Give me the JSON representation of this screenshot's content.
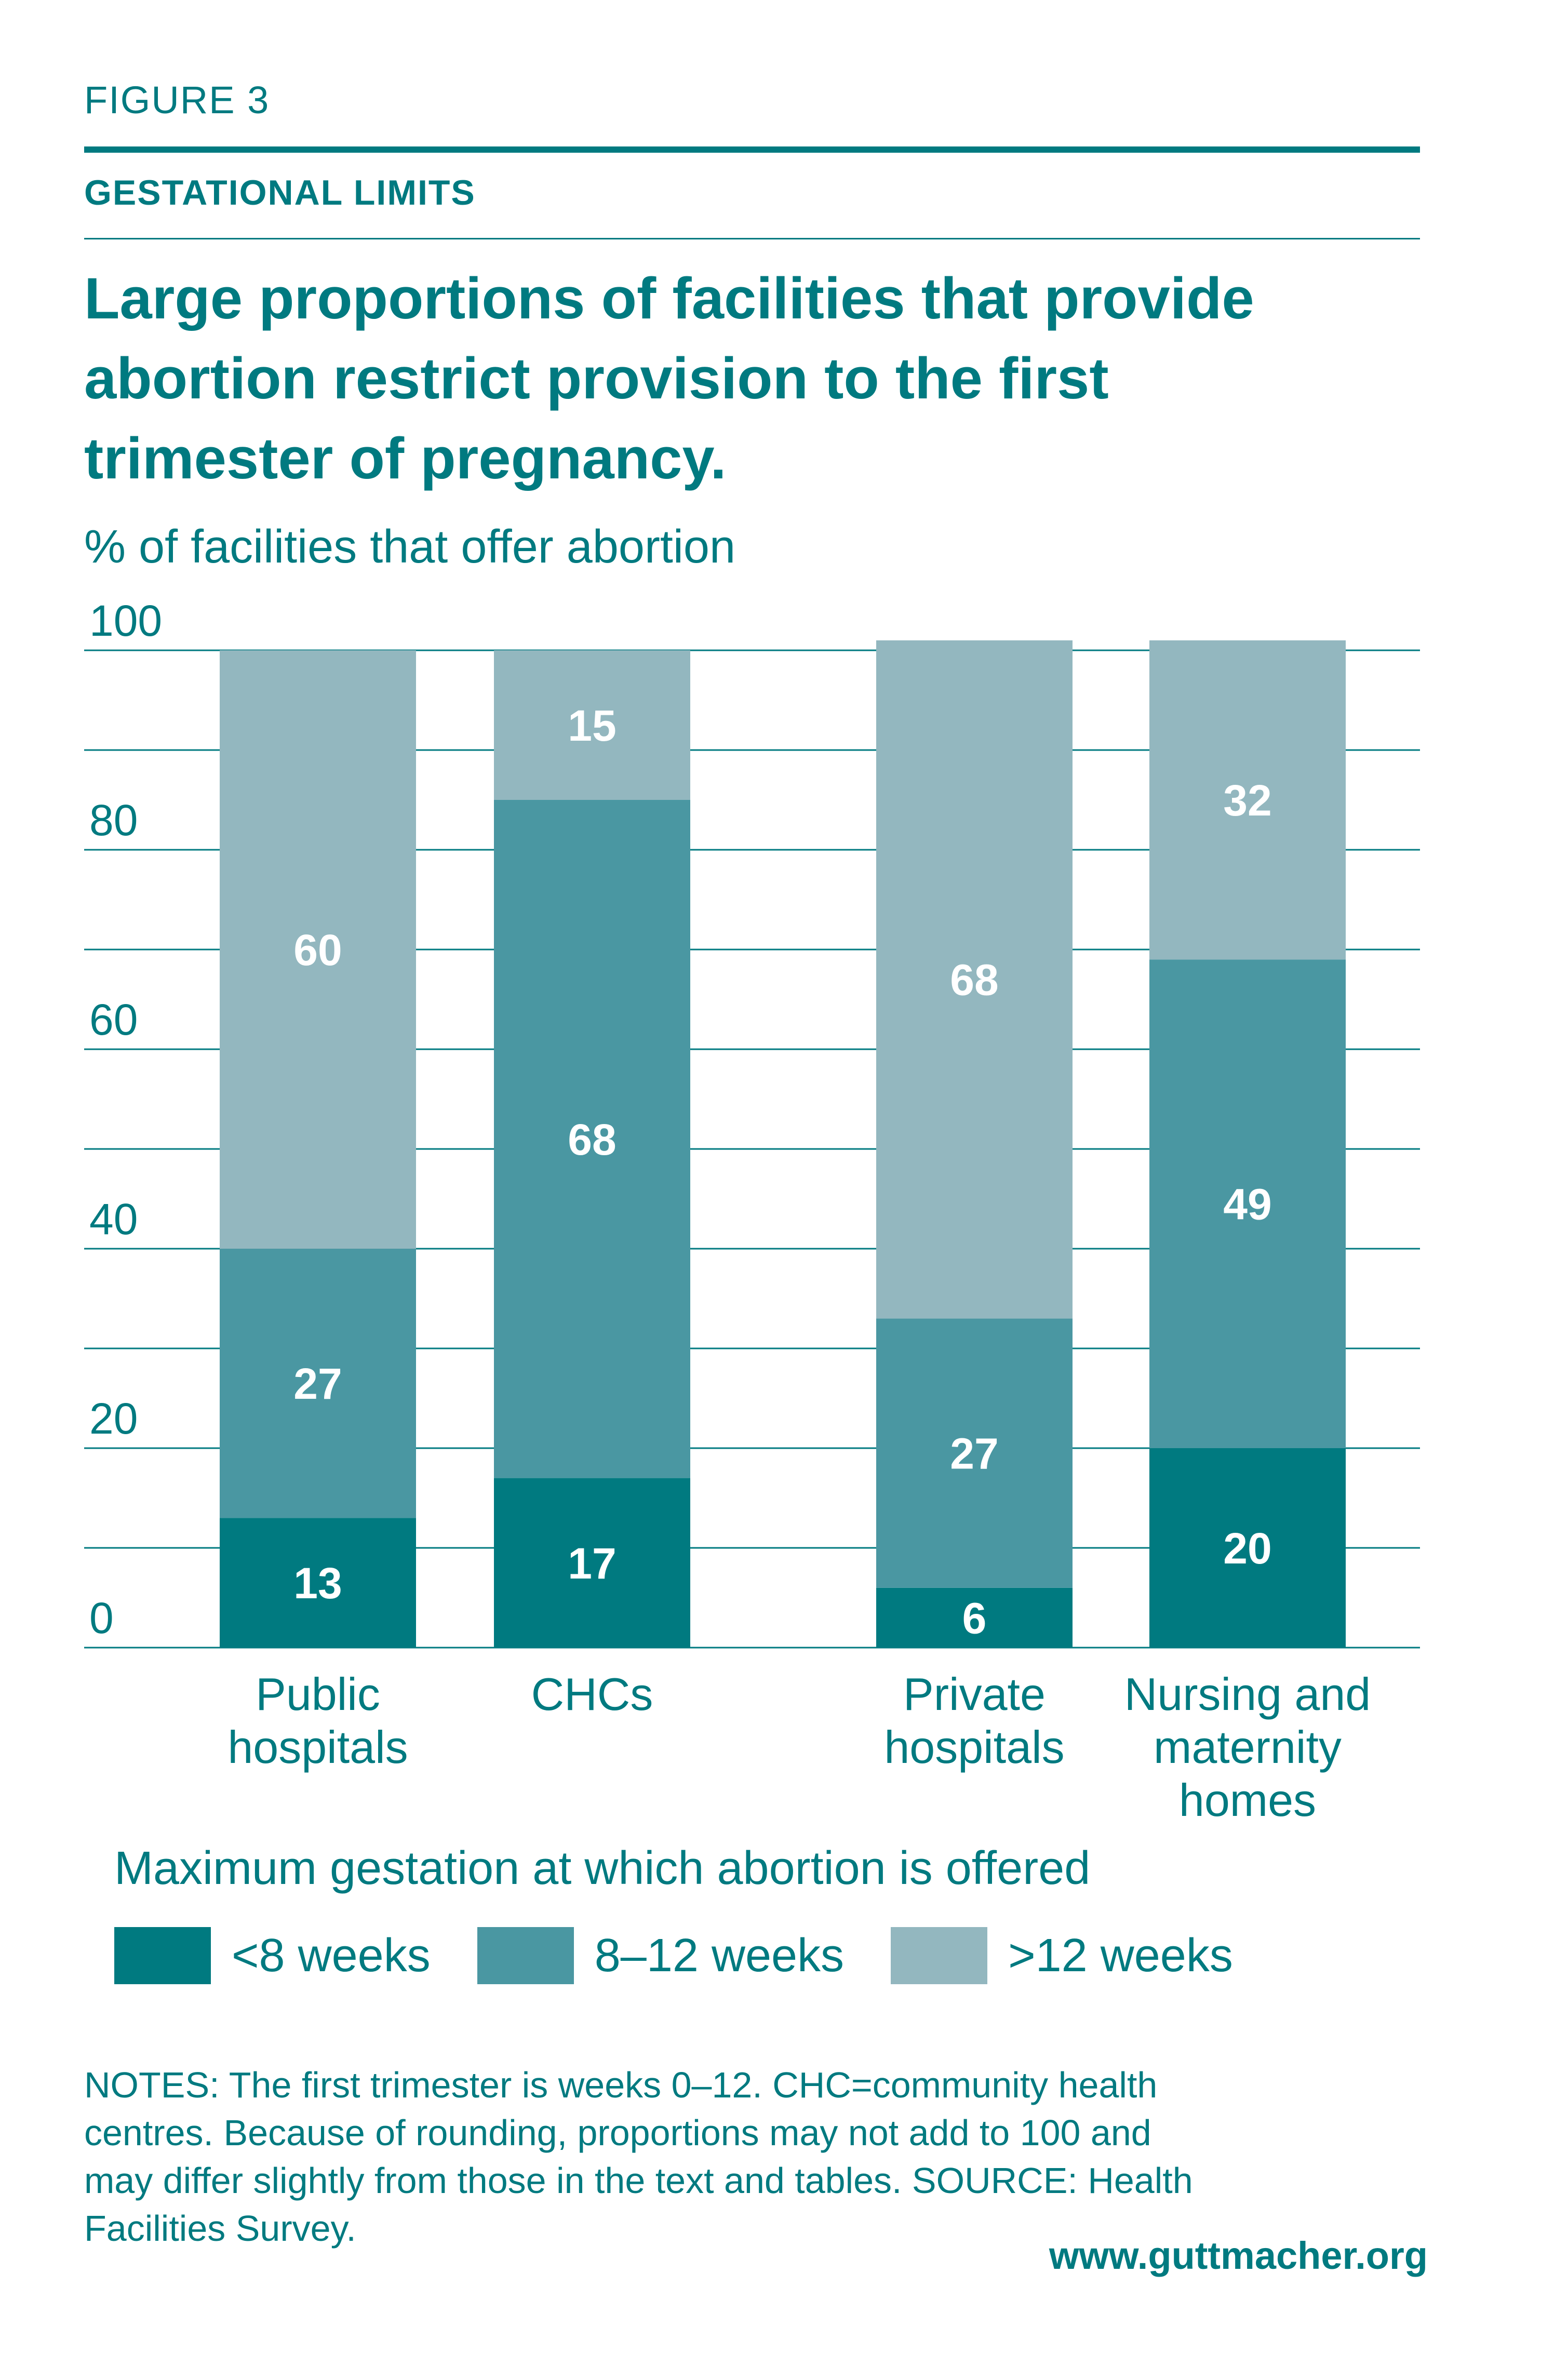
{
  "header": {
    "figure_label": "FIGURE 3",
    "section_label": "GESTATIONAL LIMITS",
    "headline_lines": [
      "Large proportions of facilities that provide",
      "abortion restrict provision to the first",
      "trimester of pregnancy."
    ]
  },
  "chart_data": {
    "type": "bar",
    "stacked": true,
    "ylabel": "% of facilities that offer abortion",
    "ylim": [
      0,
      100
    ],
    "yticks": [
      0,
      20,
      40,
      60,
      80,
      100
    ],
    "grid": true,
    "categories": [
      [
        "Public",
        "hospitals"
      ],
      [
        "CHCs"
      ],
      [
        "Private",
        "hospitals"
      ],
      [
        "Nursing and",
        "maternity",
        "homes"
      ]
    ],
    "series": [
      {
        "name": "<8 weeks",
        "color": "#007a80",
        "values": [
          13,
          17,
          6,
          20
        ]
      },
      {
        "name": "8–12 weeks",
        "color": "#4a97a2",
        "values": [
          27,
          68,
          27,
          49
        ]
      },
      {
        "name": ">12 weeks",
        "color": "#93b7bf",
        "values": [
          60,
          15,
          68,
          32
        ]
      }
    ],
    "legend_title": "Maximum gestation at which abortion is offered",
    "legend_position": "bottom"
  },
  "footer": {
    "notes_lines": [
      "NOTES: The first trimester is weeks 0–12. CHC=community health",
      "centres. Because of rounding, proportions may not add to 100 and",
      "may differ slightly from those in the text and tables. SOURCE: Health",
      "Facilities Survey."
    ],
    "url": "www.guttmacher.org"
  }
}
